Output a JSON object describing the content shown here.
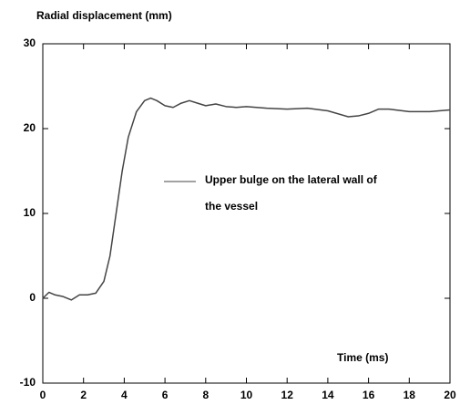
{
  "chart_data": {
    "type": "line",
    "title": "Radial displacement (mm)",
    "x_label": "Time (ms)",
    "x": [
      0,
      0.3,
      0.6,
      1,
      1.4,
      1.8,
      2.2,
      2.6,
      3.0,
      3.3,
      3.6,
      3.9,
      4.2,
      4.6,
      5.0,
      5.3,
      5.6,
      6.0,
      6.4,
      6.8,
      7.2,
      7.6,
      8,
      8.5,
      9,
      9.5,
      10,
      11,
      12,
      13,
      14,
      15,
      15.5,
      16,
      16.5,
      17,
      18,
      19,
      20
    ],
    "series": [
      {
        "name": "Upper bulge on the lateral wall of the vessel",
        "color": "#444444",
        "values": [
          0,
          0.7,
          0.4,
          0.2,
          -0.2,
          0.4,
          0.4,
          0.6,
          2,
          5,
          10,
          15,
          19,
          22,
          23.3,
          23.6,
          23.3,
          22.7,
          22.5,
          23,
          23.3,
          23,
          22.7,
          22.9,
          22.6,
          22.5,
          22.6,
          22.4,
          22.3,
          22.4,
          22.1,
          21.4,
          21.5,
          21.8,
          22.3,
          22.3,
          22,
          22,
          22.2
        ]
      }
    ],
    "xlim": [
      0,
      20
    ],
    "xticks": [
      0,
      2,
      4,
      6,
      8,
      10,
      12,
      14,
      16,
      18,
      20
    ],
    "ylim": [
      -10,
      30
    ],
    "yticks": [
      -10,
      0,
      10,
      20,
      30
    ],
    "legend": "center"
  }
}
